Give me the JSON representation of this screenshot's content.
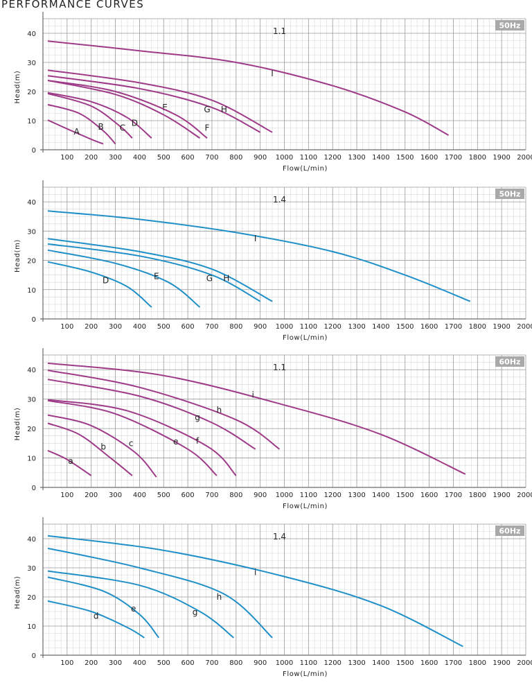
{
  "page_title": "PERFORMANCE CURVES",
  "chart_data": [
    {
      "type": "line",
      "model": "1.1",
      "frequency": "50Hz",
      "xlabel": "Flow(L/min)",
      "ylabel": "Head(m)",
      "xlim": [
        0,
        2000
      ],
      "ylim": [
        0,
        45
      ],
      "xticks": [
        100,
        200,
        300,
        400,
        500,
        600,
        700,
        800,
        900,
        1000,
        1100,
        1200,
        1300,
        1400,
        1500,
        1600,
        1700,
        1800,
        1900,
        2000
      ],
      "yticks": [
        0,
        10,
        20,
        30,
        40
      ],
      "grid": true,
      "color": "#9e3a88",
      "series": [
        {
          "name": "A",
          "x": [
            20,
            100,
            200,
            250
          ],
          "y": [
            10.2,
            7.2,
            3.6,
            2.0
          ],
          "label_at": [
            140,
            6.2
          ]
        },
        {
          "name": "B",
          "x": [
            20,
            150,
            250,
            300
          ],
          "y": [
            15.5,
            12.5,
            6.5,
            2.0
          ],
          "label_at": [
            240,
            7.8
          ]
        },
        {
          "name": "C",
          "x": [
            20,
            200,
            320,
            370
          ],
          "y": [
            19.3,
            15.0,
            8.0,
            4.0
          ],
          "label_at": [
            330,
            7.5
          ]
        },
        {
          "name": "D",
          "x": [
            20,
            200,
            350,
            450
          ],
          "y": [
            19.6,
            16.5,
            11.0,
            4.0
          ],
          "label_at": [
            380,
            9.2
          ]
        },
        {
          "name": "E",
          "x": [
            20,
            300,
            500,
            650
          ],
          "y": [
            23.8,
            19.0,
            12.0,
            4.0
          ],
          "label_at": [
            505,
            14.5
          ]
        },
        {
          "name": "F",
          "x": [
            20,
            300,
            550,
            680
          ],
          "y": [
            23.8,
            20.0,
            12.0,
            4.0
          ],
          "label_at": [
            680,
            7.5
          ]
        },
        {
          "name": "G",
          "x": [
            20,
            400,
            700,
            900
          ],
          "y": [
            25.4,
            21.0,
            14.5,
            6.0
          ],
          "label_at": [
            680,
            13.8
          ]
        },
        {
          "name": "H",
          "x": [
            20,
            400,
            700,
            950
          ],
          "y": [
            27.3,
            23.0,
            17.0,
            6.0
          ],
          "label_at": [
            750,
            13.8
          ]
        },
        {
          "name": "I",
          "x": [
            20,
            400,
            800,
            1200,
            1500,
            1680
          ],
          "y": [
            37.3,
            34.0,
            30.0,
            22.0,
            13.0,
            5.0
          ],
          "label_at": [
            950,
            26.2
          ]
        }
      ]
    },
    {
      "type": "line",
      "model": "1.4",
      "frequency": "50Hz",
      "xlabel": "Flow(L/min)",
      "ylabel": "Head(m)",
      "xlim": [
        0,
        2000
      ],
      "ylim": [
        0,
        45
      ],
      "xticks": [
        100,
        200,
        300,
        400,
        500,
        600,
        700,
        800,
        900,
        1000,
        1100,
        1200,
        1300,
        1400,
        1500,
        1600,
        1700,
        1800,
        1900,
        2000
      ],
      "yticks": [
        0,
        10,
        20,
        30,
        40
      ],
      "grid": true,
      "color": "#1f8fc8",
      "series": [
        {
          "name": "D",
          "x": [
            20,
            200,
            350,
            450
          ],
          "y": [
            19.5,
            16.0,
            11.0,
            4.0
          ],
          "label_at": [
            260,
            13.2
          ]
        },
        {
          "name": "E",
          "x": [
            20,
            300,
            520,
            650
          ],
          "y": [
            23.5,
            19.0,
            12.5,
            4.0
          ],
          "label_at": [
            470,
            14.6
          ]
        },
        {
          "name": "G",
          "x": [
            20,
            400,
            700,
            900
          ],
          "y": [
            25.6,
            21.5,
            15.0,
            6.0
          ],
          "label_at": [
            690,
            13.8
          ]
        },
        {
          "name": "H",
          "x": [
            20,
            400,
            700,
            950
          ],
          "y": [
            27.4,
            23.0,
            17.0,
            6.0
          ],
          "label_at": [
            760,
            13.8
          ]
        },
        {
          "name": "I",
          "x": [
            20,
            400,
            800,
            1200,
            1500,
            1770
          ],
          "y": [
            36.9,
            34.0,
            29.5,
            23.0,
            15.0,
            6.0
          ],
          "label_at": [
            880,
            27.5
          ]
        }
      ]
    },
    {
      "type": "line",
      "model": "1.1",
      "frequency": "60Hz",
      "xlabel": "Flow(L/min)",
      "ylabel": "Head(m)",
      "xlim": [
        0,
        2000
      ],
      "ylim": [
        0,
        45
      ],
      "xticks": [
        100,
        200,
        300,
        400,
        500,
        600,
        700,
        800,
        900,
        1000,
        1100,
        1200,
        1300,
        1400,
        1500,
        1600,
        1700,
        1800,
        1900,
        2000
      ],
      "yticks": [
        0,
        10,
        20,
        30,
        40
      ],
      "grid": true,
      "color": "#9e3a88",
      "series": [
        {
          "name": "a",
          "x": [
            20,
            100,
            200
          ],
          "y": [
            12.5,
            9.5,
            4.0
          ],
          "label_at": [
            115,
            9.0
          ]
        },
        {
          "name": "b",
          "x": [
            20,
            150,
            280,
            370
          ],
          "y": [
            21.8,
            18.0,
            10.0,
            4.0
          ],
          "label_at": [
            250,
            13.8
          ]
        },
        {
          "name": "c",
          "x": [
            20,
            200,
            380,
            470
          ],
          "y": [
            24.6,
            21.0,
            12.0,
            3.5
          ],
          "label_at": [
            365,
            15.0
          ]
        },
        {
          "name": "e",
          "x": [
            20,
            300,
            600,
            720
          ],
          "y": [
            29.5,
            25.0,
            13.0,
            4.0
          ],
          "label_at": [
            550,
            15.6
          ]
        },
        {
          "name": "f",
          "x": [
            20,
            350,
            680,
            800
          ],
          "y": [
            29.8,
            26.0,
            14.0,
            4.0
          ],
          "label_at": [
            640,
            15.8
          ]
        },
        {
          "name": "g",
          "x": [
            20,
            400,
            700,
            880
          ],
          "y": [
            36.7,
            31.0,
            22.0,
            13.0
          ],
          "label_at": [
            640,
            23.8
          ]
        },
        {
          "name": "h",
          "x": [
            20,
            400,
            800,
            980
          ],
          "y": [
            39.8,
            34.0,
            23.0,
            13.0
          ],
          "label_at": [
            730,
            26.3
          ]
        },
        {
          "name": "i",
          "x": [
            20,
            500,
            1000,
            1400,
            1750
          ],
          "y": [
            42.2,
            38.0,
            28.0,
            18.0,
            4.5
          ],
          "label_at": [
            870,
            31.5
          ]
        }
      ]
    },
    {
      "type": "line",
      "model": "1.4",
      "frequency": "60Hz",
      "xlabel": "Flow(L/min)",
      "ylabel": "Head(m)",
      "xlim": [
        0,
        2000
      ],
      "ylim": [
        0,
        45
      ],
      "xticks": [
        100,
        200,
        300,
        400,
        500,
        600,
        700,
        800,
        900,
        1000,
        1100,
        1200,
        1300,
        1400,
        1500,
        1600,
        1700,
        1800,
        1900,
        2000
      ],
      "yticks": [
        0,
        10,
        20,
        30,
        40
      ],
      "grid": true,
      "color": "#1f8fc8",
      "series": [
        {
          "name": "d",
          "x": [
            20,
            200,
            350,
            420
          ],
          "y": [
            18.6,
            15.0,
            9.5,
            6.0
          ],
          "label_at": [
            220,
            13.5
          ]
        },
        {
          "name": "e",
          "x": [
            20,
            250,
            400,
            480
          ],
          "y": [
            26.8,
            22.0,
            14.0,
            6.0
          ],
          "label_at": [
            375,
            16.0
          ]
        },
        {
          "name": "g",
          "x": [
            20,
            400,
            650,
            790
          ],
          "y": [
            28.9,
            24.0,
            15.0,
            6.0
          ],
          "label_at": [
            630,
            14.8
          ]
        },
        {
          "name": "h",
          "x": [
            20,
            400,
            750,
            950
          ],
          "y": [
            36.7,
            30.0,
            21.0,
            6.0
          ],
          "label_at": [
            730,
            20.0
          ]
        },
        {
          "name": "i",
          "x": [
            20,
            500,
            1000,
            1400,
            1740
          ],
          "y": [
            41.0,
            36.0,
            27.0,
            17.0,
            3.0
          ],
          "label_at": [
            880,
            28.5
          ]
        }
      ]
    }
  ]
}
